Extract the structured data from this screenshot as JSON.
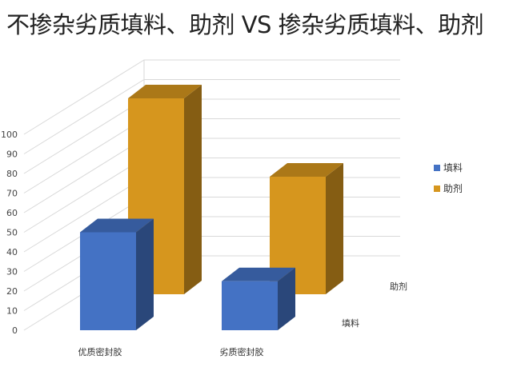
{
  "chart_data": {
    "type": "bar",
    "title": "不掺杂劣质填料、助剂 VS 掺杂劣质填料、助剂",
    "categories": [
      "优质密封胶",
      "劣质密封胶"
    ],
    "series": [
      {
        "name": "填料",
        "values": [
          50,
          25
        ],
        "color": "#4472C4"
      },
      {
        "name": "助剂",
        "values": [
          100,
          60
        ],
        "color": "#D6961E"
      }
    ],
    "yticks": [
      0,
      10,
      20,
      30,
      40,
      50,
      60,
      70,
      80,
      90,
      100
    ],
    "ylim": [
      0,
      100
    ],
    "grid": true,
    "legend": "right",
    "projection": "3d"
  }
}
